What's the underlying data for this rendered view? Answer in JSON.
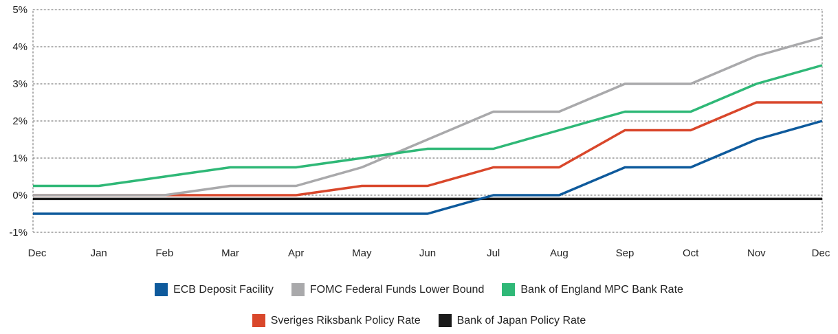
{
  "chart_data": {
    "type": "line",
    "title": "",
    "xlabel": "",
    "ylabel": "",
    "x": [
      "Dec",
      "Jan",
      "Feb",
      "Mar",
      "Apr",
      "May",
      "Jun",
      "Jul",
      "Aug",
      "Sep",
      "Oct",
      "Nov",
      "Dec"
    ],
    "yticks": [
      "5%",
      "4%",
      "3%",
      "2%",
      "1%",
      "0%",
      "-1%"
    ],
    "ylim": [
      -1,
      5
    ],
    "grid": "horizontal dotted",
    "legend_position": "bottom",
    "series": [
      {
        "name": "ECB Deposit Facility",
        "color": "#0e5a9c",
        "values": [
          -0.5,
          -0.5,
          -0.5,
          -0.5,
          -0.5,
          -0.5,
          -0.5,
          0,
          0,
          0.75,
          0.75,
          1.5,
          2.0
        ]
      },
      {
        "name": "FOMC Federal Funds Lower Bound",
        "color": "#a9a9ab",
        "values": [
          0,
          0,
          0,
          0.25,
          0.25,
          0.75,
          1.5,
          2.25,
          2.25,
          3.0,
          3.0,
          3.75,
          4.25
        ]
      },
      {
        "name": "Bank of England MPC Bank Rate",
        "color": "#2fb877",
        "values": [
          0.25,
          0.25,
          0.5,
          0.75,
          0.75,
          1.0,
          1.25,
          1.25,
          1.75,
          2.25,
          2.25,
          3.0,
          3.5
        ]
      },
      {
        "name": "Sveriges Riksbank Policy Rate",
        "color": "#d9472b",
        "values": [
          0,
          0,
          0,
          0,
          0,
          0.25,
          0.25,
          0.75,
          0.75,
          1.75,
          1.75,
          2.5,
          2.5
        ]
      },
      {
        "name": "Bank of Japan Policy Rate",
        "color": "#1a1a1a",
        "values": [
          -0.1,
          -0.1,
          -0.1,
          -0.1,
          -0.1,
          -0.1,
          -0.1,
          -0.1,
          -0.1,
          -0.1,
          -0.1,
          -0.1,
          -0.1
        ]
      }
    ]
  },
  "legend": {
    "row1": [
      {
        "label": "ECB Deposit Facility",
        "color": "#0e5a9c"
      },
      {
        "label": "FOMC Federal Funds Lower Bound",
        "color": "#a9a9ab"
      },
      {
        "label": "Bank of England MPC Bank Rate",
        "color": "#2fb877"
      }
    ],
    "row2": [
      {
        "label": "Sveriges Riksbank Policy Rate",
        "color": "#d9472b"
      },
      {
        "label": "Bank of Japan Policy Rate",
        "color": "#1a1a1a"
      }
    ]
  }
}
